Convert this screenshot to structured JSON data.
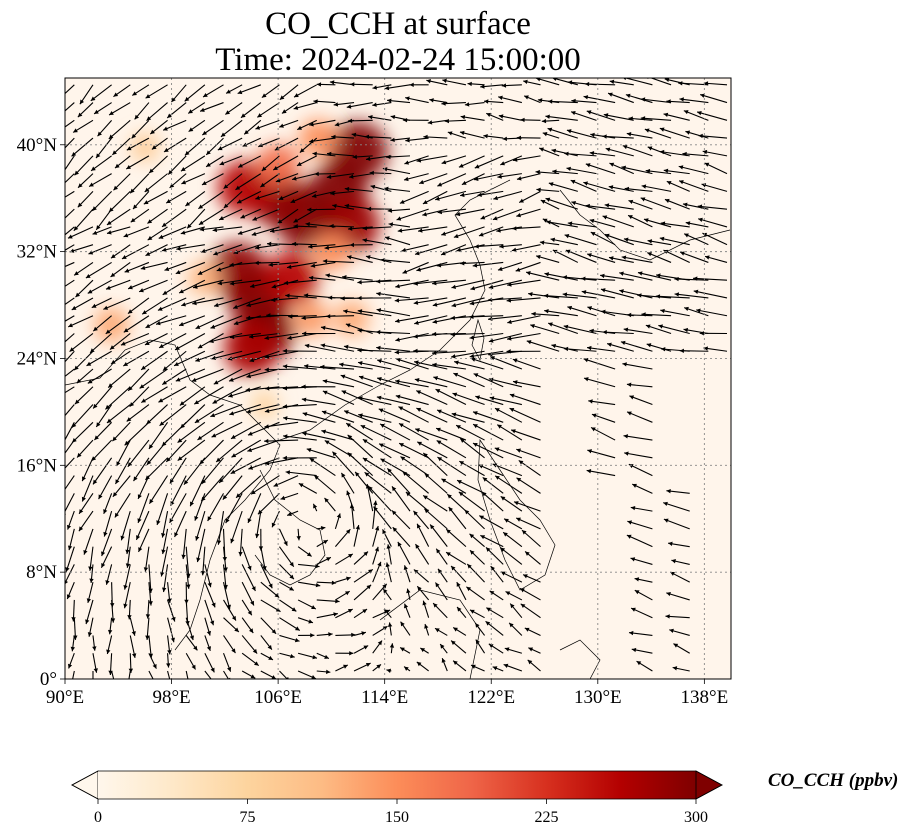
{
  "title": {
    "line1": "CO_CCH at surface",
    "line2": "Time: 2024-02-24 15:00:00"
  },
  "map": {
    "lon_range": [
      90,
      140
    ],
    "lat_range": [
      0,
      45
    ],
    "lon_ticks": [
      {
        "value": 90,
        "label": "90°E"
      },
      {
        "value": 98,
        "label": "98°E"
      },
      {
        "value": 106,
        "label": "106°E"
      },
      {
        "value": 114,
        "label": "114°E"
      },
      {
        "value": 122,
        "label": "122°E"
      },
      {
        "value": 130,
        "label": "130°E"
      },
      {
        "value": 138,
        "label": "138°E"
      }
    ],
    "lat_ticks": [
      {
        "value": 0,
        "label": "0°"
      },
      {
        "value": 8,
        "label": "8°N"
      },
      {
        "value": 16,
        "label": "16°N"
      },
      {
        "value": 24,
        "label": "24°N"
      },
      {
        "value": 32,
        "label": "32°N"
      },
      {
        "value": 40,
        "label": "40°N"
      }
    ],
    "gridlines": true,
    "background_color": "#fff5eb",
    "vector_color": "#000000"
  },
  "colorbar": {
    "label": "CO_CCH (ppbv)",
    "min": 0,
    "max": 300,
    "extend": "both",
    "colormap": "OrRd",
    "stops": [
      "#fff7ec",
      "#fee8c8",
      "#fdd49e",
      "#fdbb84",
      "#fc8d59",
      "#ef6548",
      "#d7301f",
      "#b30000",
      "#7f0000"
    ],
    "ticks": [
      {
        "value": 0,
        "label": "0"
      },
      {
        "value": 75,
        "label": "75"
      },
      {
        "value": 150,
        "label": "150"
      },
      {
        "value": 225,
        "label": "225"
      },
      {
        "value": 300,
        "label": "300"
      }
    ]
  },
  "plumes": [
    {
      "lon": 104.5,
      "lat": 28.5,
      "value": 300
    },
    {
      "lon": 105.0,
      "lat": 26.0,
      "value": 300
    },
    {
      "lon": 103.0,
      "lat": 30.5,
      "value": 290
    },
    {
      "lon": 107.0,
      "lat": 30.0,
      "value": 260
    },
    {
      "lon": 104.0,
      "lat": 24.8,
      "value": 270
    },
    {
      "lon": 108.0,
      "lat": 34.5,
      "value": 300
    },
    {
      "lon": 110.5,
      "lat": 36.5,
      "value": 300
    },
    {
      "lon": 106.0,
      "lat": 36.0,
      "value": 290
    },
    {
      "lon": 112.0,
      "lat": 39.5,
      "value": 300
    },
    {
      "lon": 111.5,
      "lat": 34.0,
      "value": 280
    },
    {
      "lon": 103.5,
      "lat": 36.8,
      "value": 260
    },
    {
      "lon": 110.0,
      "lat": 32.0,
      "value": 150
    },
    {
      "lon": 108.5,
      "lat": 27.0,
      "value": 140
    },
    {
      "lon": 111.5,
      "lat": 27.0,
      "value": 130
    },
    {
      "lon": 106.0,
      "lat": 38.5,
      "value": 180
    },
    {
      "lon": 109.0,
      "lat": 40.5,
      "value": 150
    },
    {
      "lon": 100.5,
      "lat": 30.0,
      "value": 120
    },
    {
      "lon": 93.5,
      "lat": 26.5,
      "value": 130
    },
    {
      "lon": 96.0,
      "lat": 39.8,
      "value": 90
    },
    {
      "lon": 105.0,
      "lat": 20.5,
      "value": 80
    }
  ]
}
